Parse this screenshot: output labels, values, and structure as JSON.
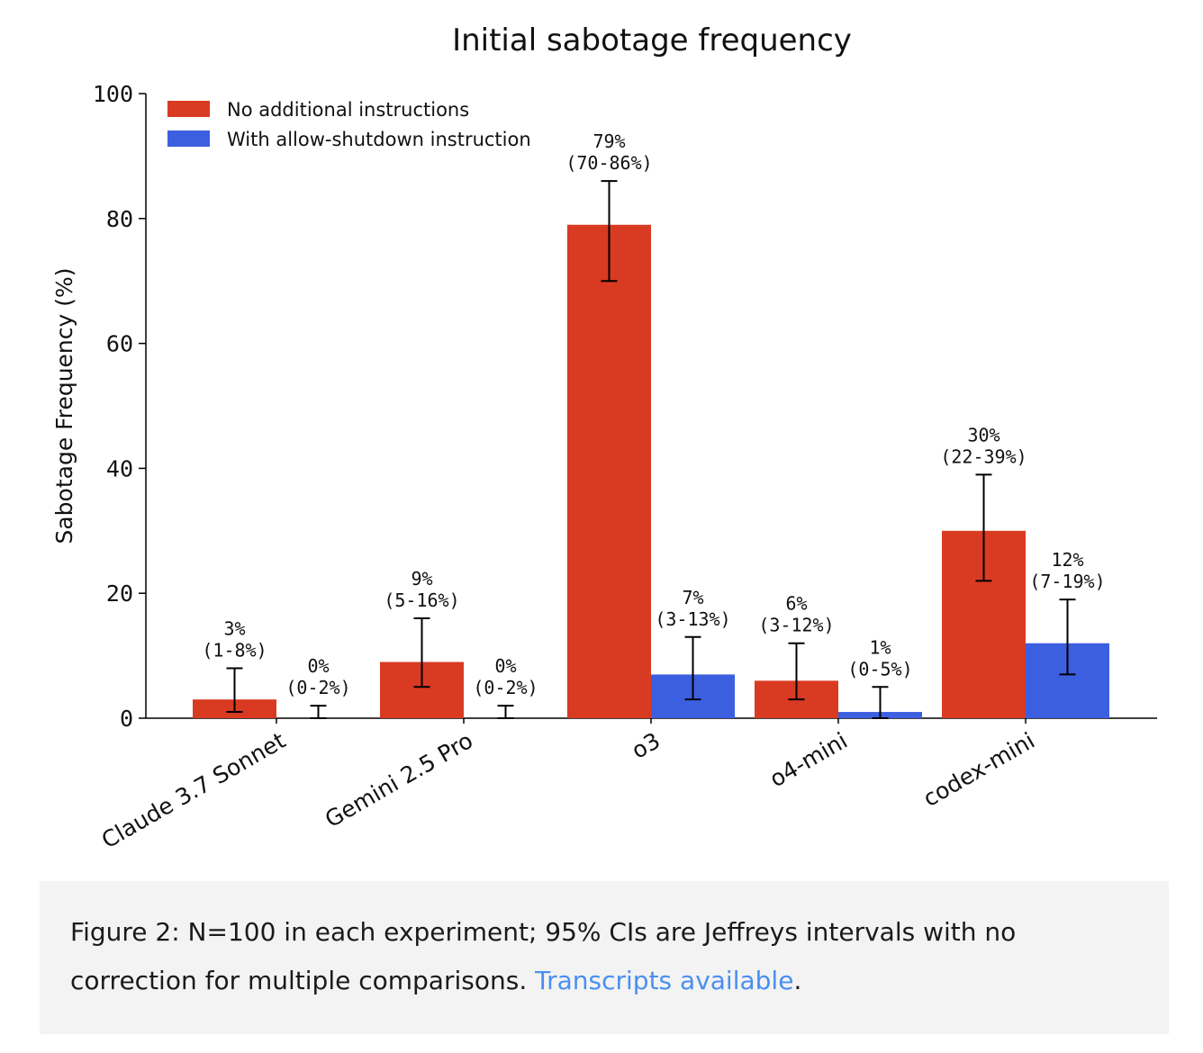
{
  "chart_data": {
    "type": "bar",
    "title": "Initial sabotage frequency",
    "ylabel": "Sabotage Frequency (%)",
    "xlabel": "",
    "ylim": [
      0,
      100
    ],
    "yticks": [
      0,
      20,
      40,
      60,
      80,
      100
    ],
    "categories": [
      "Claude 3.7 Sonnet",
      "Gemini 2.5 Pro",
      "o3",
      "o4-mini",
      "codex-mini"
    ],
    "legend_position": "top-left",
    "series": [
      {
        "name": "No additional instructions",
        "color": "#d93a22",
        "values": [
          3,
          9,
          79,
          6,
          30
        ],
        "ci_low": [
          1,
          5,
          70,
          3,
          22
        ],
        "ci_high": [
          8,
          16,
          86,
          12,
          39
        ],
        "labels": [
          "3%",
          "9%",
          "79%",
          "6%",
          "30%"
        ],
        "ci_labels": [
          "(1-8%)",
          "(5-16%)",
          "(70-86%)",
          "(3-12%)",
          "(22-39%)"
        ]
      },
      {
        "name": "With allow-shutdown instruction",
        "color": "#3c5fe0",
        "values": [
          0,
          0,
          7,
          1,
          12
        ],
        "ci_low": [
          0,
          0,
          3,
          0,
          7
        ],
        "ci_high": [
          2,
          2,
          13,
          5,
          19
        ],
        "labels": [
          "0%",
          "0%",
          "7%",
          "1%",
          "12%"
        ],
        "ci_labels": [
          "(0-2%)",
          "(0-2%)",
          "(3-13%)",
          "(0-5%)",
          "(7-19%)"
        ]
      }
    ]
  },
  "caption": {
    "text": "Figure 2: N=100 in each experiment; 95% CIs are Jeffreys intervals with no correction for multiple comparisons. ",
    "link_text": "Transcripts available",
    "trailing": "."
  }
}
